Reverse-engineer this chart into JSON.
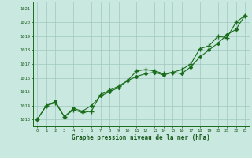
{
  "xlabel": "Graphe pression niveau de la mer (hPa)",
  "x": [
    0,
    1,
    2,
    3,
    4,
    5,
    6,
    7,
    8,
    9,
    10,
    11,
    12,
    13,
    14,
    15,
    16,
    17,
    18,
    19,
    20,
    21,
    22,
    23
  ],
  "line_jagged": [
    1013.0,
    1014.0,
    1014.2,
    1013.2,
    1013.7,
    1013.5,
    1013.6,
    1014.8,
    1015.1,
    1015.4,
    1015.8,
    1016.5,
    1016.6,
    1016.5,
    1016.3,
    1016.4,
    1016.6,
    1017.0,
    1018.1,
    1018.3,
    1019.0,
    1018.9,
    1020.0,
    1020.5
  ],
  "line_smooth": [
    1013.0,
    1014.0,
    1014.3,
    1013.2,
    1013.8,
    1013.6,
    1014.0,
    1014.7,
    1015.0,
    1015.3,
    1015.8,
    1016.1,
    1016.3,
    1016.4,
    1016.2,
    1016.4,
    1016.3,
    1016.8,
    1017.5,
    1018.0,
    1018.5,
    1019.1,
    1019.5,
    1020.5
  ],
  "ylim_min": 1012.5,
  "ylim_max": 1021.5,
  "yticks": [
    1013,
    1014,
    1015,
    1016,
    1017,
    1018,
    1019,
    1020,
    1021
  ],
  "line_color": "#1a6b1a",
  "bg_color": "#c8e8e0",
  "grid_color": "#9fc8c0",
  "label_color": "#1a5a1a"
}
